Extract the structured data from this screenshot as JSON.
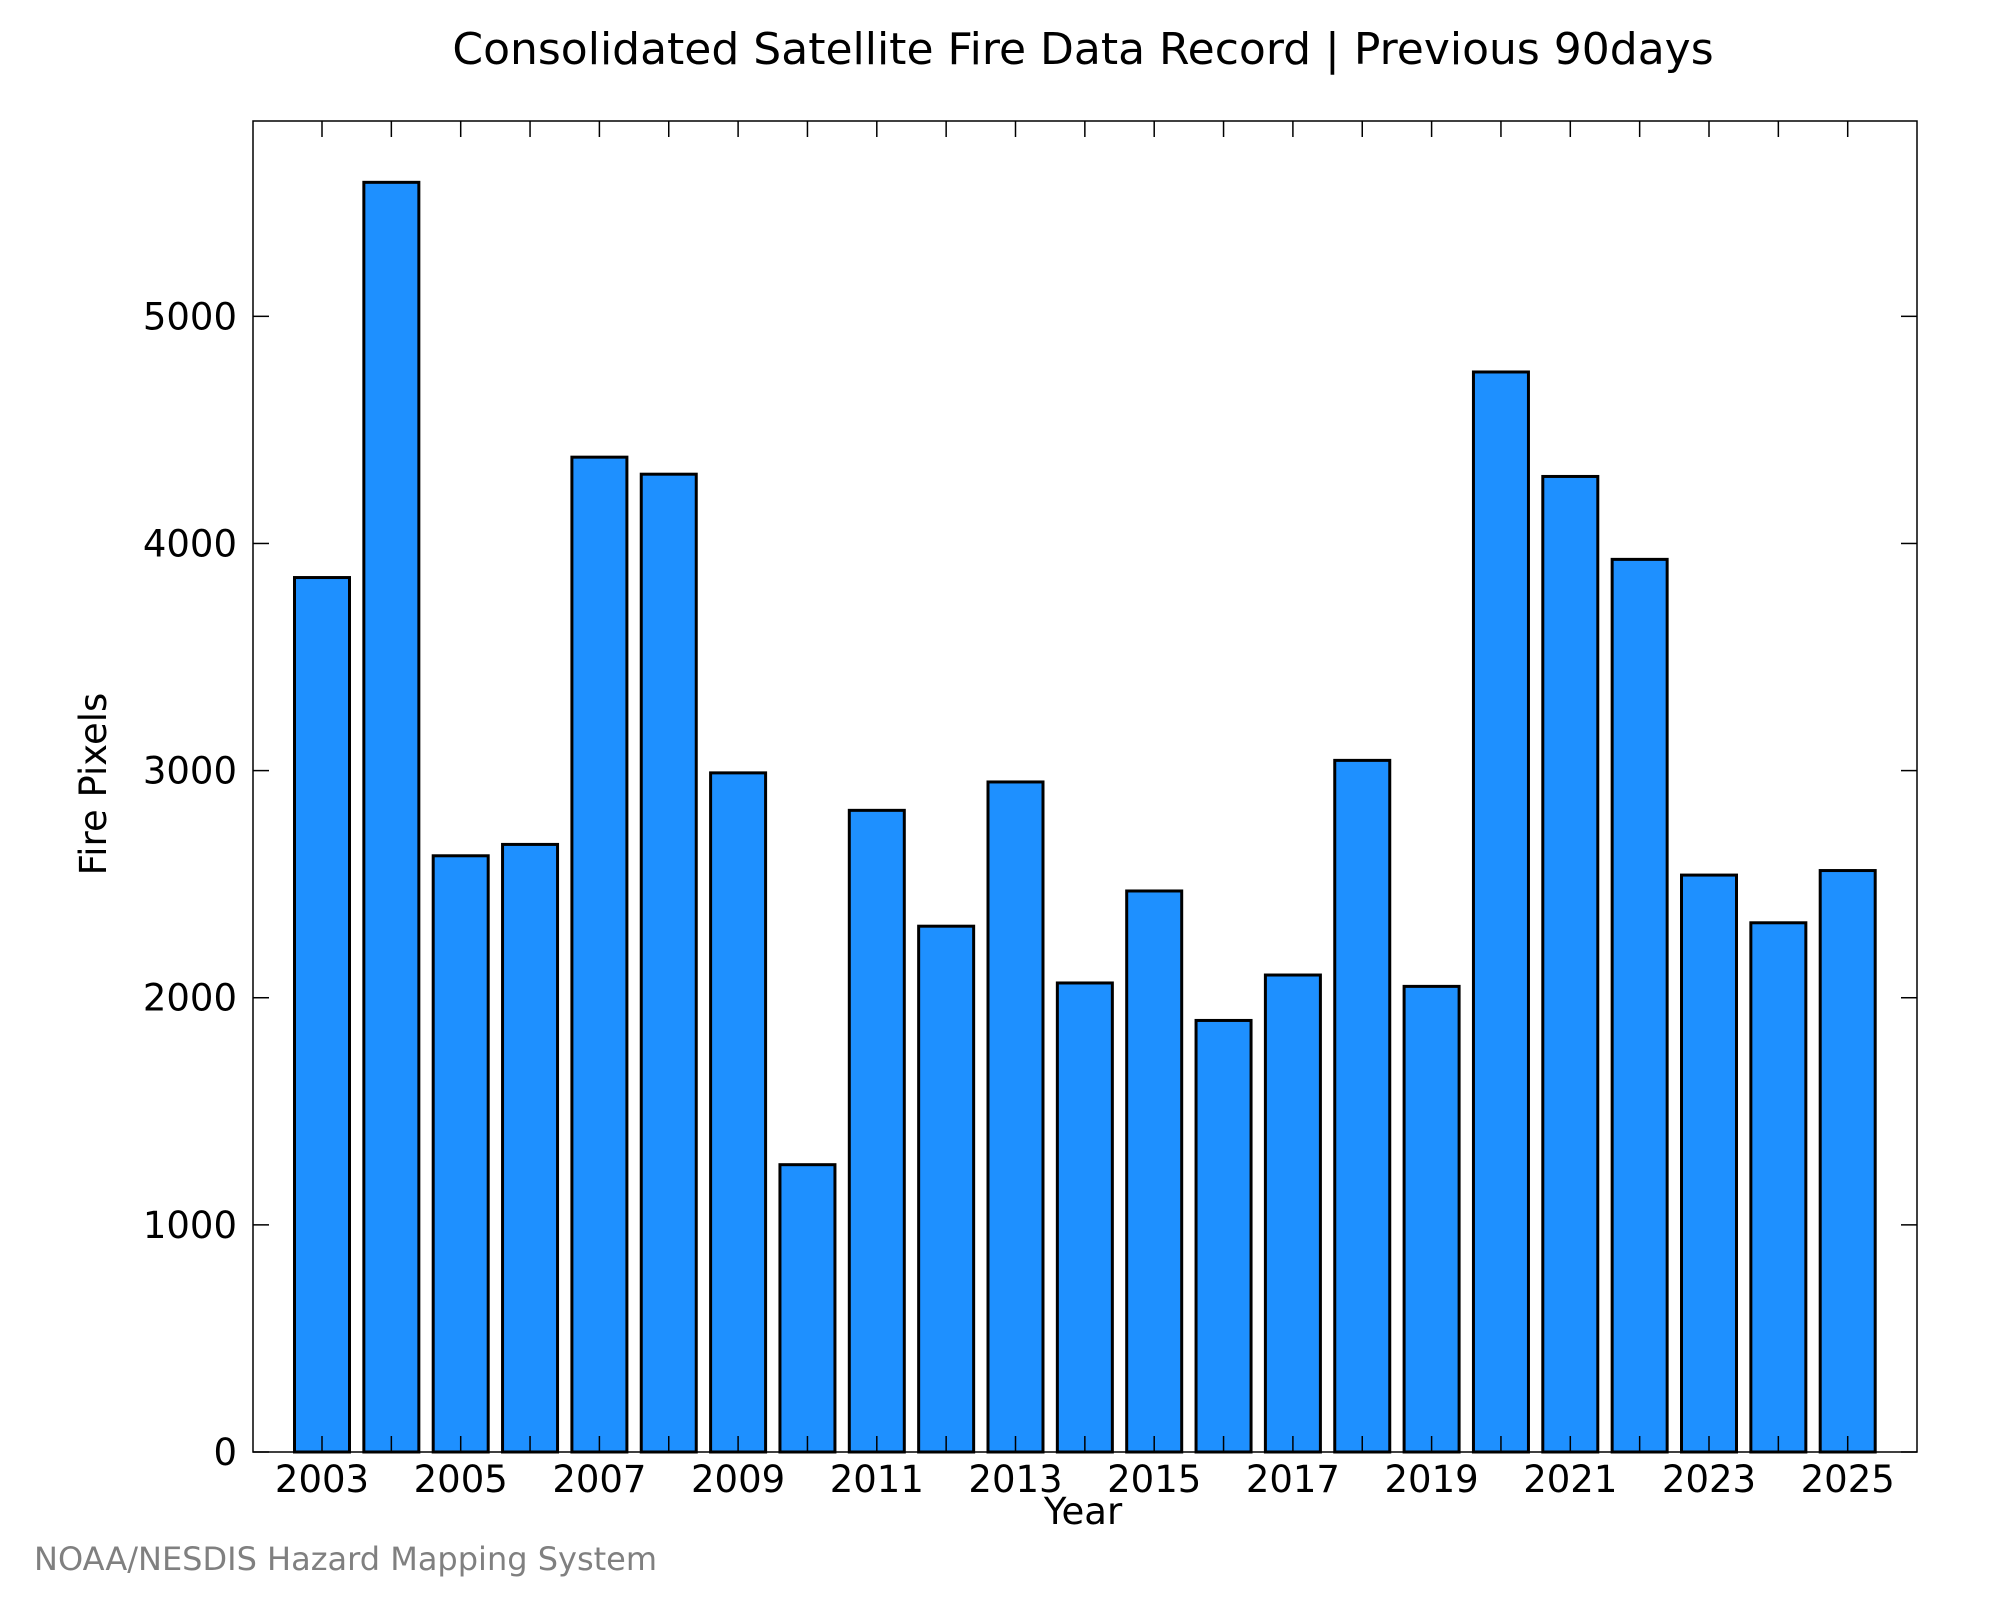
{
  "chart_data": {
    "type": "bar",
    "title": "Consolidated Satellite Fire Data Record | Previous 90days",
    "xlabel": "Year",
    "ylabel": "Fire Pixels",
    "credit": "NOAA/NESDIS Hazard Mapping System",
    "categories": [
      "2003",
      "2004",
      "2005",
      "2006",
      "2007",
      "2008",
      "2009",
      "2010",
      "2011",
      "2012",
      "2013",
      "2014",
      "2015",
      "2016",
      "2017",
      "2018",
      "2019",
      "2020",
      "2021",
      "2022",
      "2023",
      "2024",
      "2025"
    ],
    "values": [
      3850,
      5590,
      2625,
      2675,
      4380,
      4305,
      2990,
      1265,
      2825,
      2315,
      2950,
      2065,
      2470,
      1900,
      2100,
      3045,
      2050,
      4755,
      4295,
      3930,
      2540,
      2330,
      2560
    ],
    "x_tick_labels": [
      "2003",
      "2005",
      "2007",
      "2009",
      "2011",
      "2013",
      "2015",
      "2017",
      "2019",
      "2021",
      "2023",
      "2025"
    ],
    "y_ticks": [
      0,
      1000,
      2000,
      3000,
      4000,
      5000
    ],
    "y_tick_labels": [
      "0",
      "1000",
      "2000",
      "3000",
      "4000",
      "5000"
    ],
    "ylim": [
      0,
      5860
    ],
    "grid": false,
    "legend": "none",
    "colors": {
      "bar_fill": "#1e90ff",
      "bar_stroke": "#000000",
      "axis": "#000000",
      "credit": "#808080"
    }
  }
}
